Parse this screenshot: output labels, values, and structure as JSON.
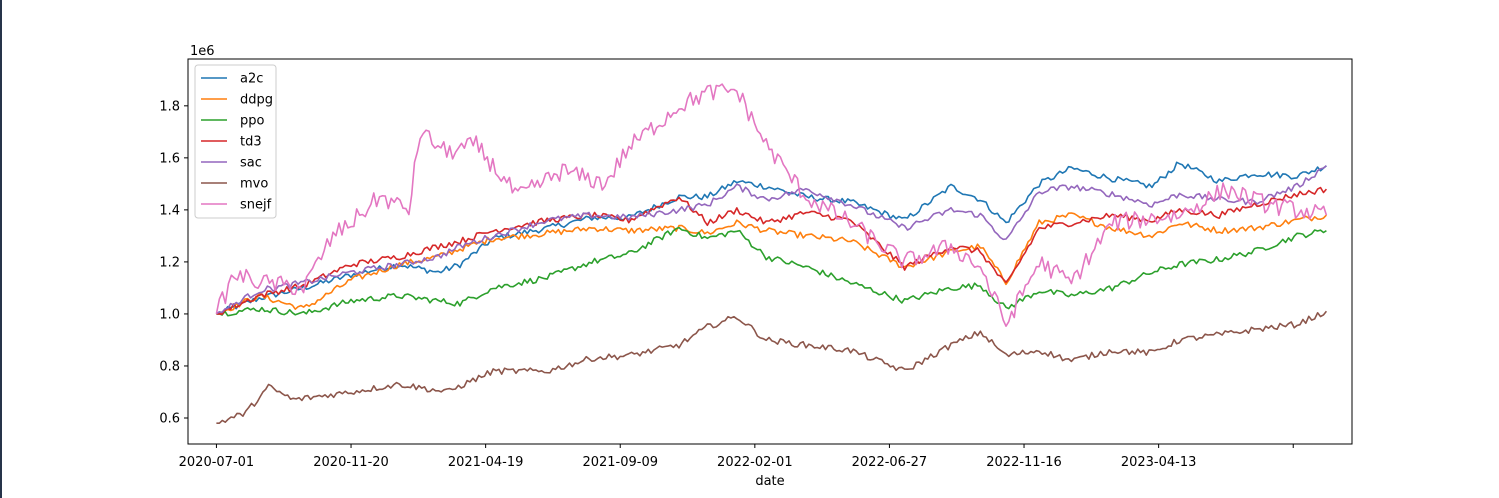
{
  "chart_data": {
    "type": "line",
    "title": "",
    "xlabel": "date",
    "ylabel": "",
    "y_offset_text": "1e6",
    "ylim": [
      0.5,
      1.98
    ],
    "y_ticks": [
      0.6,
      0.8,
      1.0,
      1.2,
      1.4,
      1.6,
      1.8
    ],
    "y_tick_labels": [
      "0.6",
      "0.8",
      "1.0",
      "1.2",
      "1.4",
      "1.6",
      "1.8"
    ],
    "x_ticks": [
      "2020-07-01",
      "2020-11-20",
      "2021-04-19",
      "2021-09-09",
      "2022-02-01",
      "2022-06-27",
      "2022-11-16",
      "2023-04-13",
      ""
    ],
    "x_range": [
      "2020-06-01",
      "2023-10-12"
    ],
    "legend_position": "upper-left",
    "grid": false,
    "series": [
      {
        "name": "a2c",
        "color": "#1f77b4",
        "values": [
          {
            "x": "2020-07-01",
            "y": 1.0
          },
          {
            "x": "2020-08-15",
            "y": 1.06
          },
          {
            "x": "2020-10-01",
            "y": 1.1
          },
          {
            "x": "2020-11-20",
            "y": 1.15
          },
          {
            "x": "2021-01-10",
            "y": 1.19
          },
          {
            "x": "2021-02-20",
            "y": 1.16
          },
          {
            "x": "2021-03-15",
            "y": 1.19
          },
          {
            "x": "2021-04-19",
            "y": 1.29
          },
          {
            "x": "2021-06-15",
            "y": 1.33
          },
          {
            "x": "2021-08-01",
            "y": 1.37
          },
          {
            "x": "2021-09-09",
            "y": 1.37
          },
          {
            "x": "2021-11-01",
            "y": 1.45
          },
          {
            "x": "2021-12-01",
            "y": 1.45
          },
          {
            "x": "2022-01-01",
            "y": 1.51
          },
          {
            "x": "2022-02-01",
            "y": 1.49
          },
          {
            "x": "2022-03-15",
            "y": 1.45
          },
          {
            "x": "2022-05-01",
            "y": 1.43
          },
          {
            "x": "2022-06-27",
            "y": 1.36
          },
          {
            "x": "2022-08-15",
            "y": 1.49
          },
          {
            "x": "2022-09-15",
            "y": 1.44
          },
          {
            "x": "2022-10-12",
            "y": 1.35
          },
          {
            "x": "2022-11-16",
            "y": 1.5
          },
          {
            "x": "2022-12-20",
            "y": 1.56
          },
          {
            "x": "2023-02-01",
            "y": 1.52
          },
          {
            "x": "2023-03-15",
            "y": 1.49
          },
          {
            "x": "2023-04-13",
            "y": 1.58
          },
          {
            "x": "2023-05-25",
            "y": 1.51
          },
          {
            "x": "2023-07-01",
            "y": 1.54
          },
          {
            "x": "2023-08-15",
            "y": 1.53
          },
          {
            "x": "2023-09-15",
            "y": 1.57
          }
        ]
      },
      {
        "name": "ddpg",
        "color": "#ff7f0e",
        "values": [
          {
            "x": "2020-07-01",
            "y": 1.0
          },
          {
            "x": "2020-08-15",
            "y": 1.07
          },
          {
            "x": "2020-10-01",
            "y": 1.02
          },
          {
            "x": "2020-11-20",
            "y": 1.13
          },
          {
            "x": "2021-01-10",
            "y": 1.19
          },
          {
            "x": "2021-02-20",
            "y": 1.22
          },
          {
            "x": "2021-03-15",
            "y": 1.25
          },
          {
            "x": "2021-04-19",
            "y": 1.29
          },
          {
            "x": "2021-06-15",
            "y": 1.31
          },
          {
            "x": "2021-08-01",
            "y": 1.33
          },
          {
            "x": "2021-09-09",
            "y": 1.32
          },
          {
            "x": "2021-11-01",
            "y": 1.33
          },
          {
            "x": "2021-12-01",
            "y": 1.31
          },
          {
            "x": "2022-01-01",
            "y": 1.35
          },
          {
            "x": "2022-02-01",
            "y": 1.32
          },
          {
            "x": "2022-03-15",
            "y": 1.3
          },
          {
            "x": "2022-05-01",
            "y": 1.28
          },
          {
            "x": "2022-06-27",
            "y": 1.18
          },
          {
            "x": "2022-08-15",
            "y": 1.24
          },
          {
            "x": "2022-09-15",
            "y": 1.26
          },
          {
            "x": "2022-10-12",
            "y": 1.12
          },
          {
            "x": "2022-11-16",
            "y": 1.35
          },
          {
            "x": "2022-12-20",
            "y": 1.38
          },
          {
            "x": "2023-02-01",
            "y": 1.33
          },
          {
            "x": "2023-03-15",
            "y": 1.3
          },
          {
            "x": "2023-04-13",
            "y": 1.35
          },
          {
            "x": "2023-05-25",
            "y": 1.32
          },
          {
            "x": "2023-07-01",
            "y": 1.33
          },
          {
            "x": "2023-08-15",
            "y": 1.36
          },
          {
            "x": "2023-09-15",
            "y": 1.38
          }
        ]
      },
      {
        "name": "ppo",
        "color": "#2ca02c",
        "values": [
          {
            "x": "2020-07-01",
            "y": 1.0
          },
          {
            "x": "2020-08-15",
            "y": 1.02
          },
          {
            "x": "2020-10-01",
            "y": 1.0
          },
          {
            "x": "2020-11-20",
            "y": 1.05
          },
          {
            "x": "2021-01-10",
            "y": 1.07
          },
          {
            "x": "2021-02-20",
            "y": 1.05
          },
          {
            "x": "2021-03-15",
            "y": 1.04
          },
          {
            "x": "2021-04-19",
            "y": 1.1
          },
          {
            "x": "2021-06-15",
            "y": 1.14
          },
          {
            "x": "2021-08-01",
            "y": 1.2
          },
          {
            "x": "2021-09-09",
            "y": 1.23
          },
          {
            "x": "2021-11-01",
            "y": 1.33
          },
          {
            "x": "2021-12-01",
            "y": 1.29
          },
          {
            "x": "2022-01-01",
            "y": 1.32
          },
          {
            "x": "2022-02-01",
            "y": 1.22
          },
          {
            "x": "2022-03-15",
            "y": 1.18
          },
          {
            "x": "2022-05-01",
            "y": 1.12
          },
          {
            "x": "2022-06-27",
            "y": 1.05
          },
          {
            "x": "2022-08-15",
            "y": 1.1
          },
          {
            "x": "2022-09-15",
            "y": 1.11
          },
          {
            "x": "2022-10-12",
            "y": 1.02
          },
          {
            "x": "2022-11-16",
            "y": 1.09
          },
          {
            "x": "2022-12-20",
            "y": 1.07
          },
          {
            "x": "2023-02-01",
            "y": 1.1
          },
          {
            "x": "2023-03-15",
            "y": 1.16
          },
          {
            "x": "2023-04-13",
            "y": 1.19
          },
          {
            "x": "2023-05-25",
            "y": 1.21
          },
          {
            "x": "2023-07-01",
            "y": 1.24
          },
          {
            "x": "2023-08-15",
            "y": 1.3
          },
          {
            "x": "2023-09-15",
            "y": 1.32
          }
        ]
      },
      {
        "name": "td3",
        "color": "#d62728",
        "values": [
          {
            "x": "2020-07-01",
            "y": 1.0
          },
          {
            "x": "2020-08-15",
            "y": 1.07
          },
          {
            "x": "2020-10-01",
            "y": 1.11
          },
          {
            "x": "2020-11-20",
            "y": 1.19
          },
          {
            "x": "2021-01-10",
            "y": 1.22
          },
          {
            "x": "2021-02-20",
            "y": 1.26
          },
          {
            "x": "2021-03-15",
            "y": 1.28
          },
          {
            "x": "2021-04-19",
            "y": 1.32
          },
          {
            "x": "2021-06-15",
            "y": 1.36
          },
          {
            "x": "2021-08-01",
            "y": 1.38
          },
          {
            "x": "2021-09-09",
            "y": 1.36
          },
          {
            "x": "2021-11-01",
            "y": 1.45
          },
          {
            "x": "2021-12-01",
            "y": 1.35
          },
          {
            "x": "2022-01-01",
            "y": 1.4
          },
          {
            "x": "2022-02-01",
            "y": 1.35
          },
          {
            "x": "2022-03-15",
            "y": 1.39
          },
          {
            "x": "2022-05-01",
            "y": 1.36
          },
          {
            "x": "2022-06-27",
            "y": 1.18
          },
          {
            "x": "2022-08-15",
            "y": 1.26
          },
          {
            "x": "2022-09-15",
            "y": 1.24
          },
          {
            "x": "2022-10-12",
            "y": 1.11
          },
          {
            "x": "2022-11-16",
            "y": 1.33
          },
          {
            "x": "2022-12-20",
            "y": 1.35
          },
          {
            "x": "2023-02-01",
            "y": 1.38
          },
          {
            "x": "2023-03-15",
            "y": 1.36
          },
          {
            "x": "2023-04-13",
            "y": 1.4
          },
          {
            "x": "2023-05-25",
            "y": 1.38
          },
          {
            "x": "2023-07-01",
            "y": 1.42
          },
          {
            "x": "2023-08-15",
            "y": 1.46
          },
          {
            "x": "2023-09-15",
            "y": 1.48
          }
        ]
      },
      {
        "name": "sac",
        "color": "#9467bd",
        "values": [
          {
            "x": "2020-07-01",
            "y": 1.0
          },
          {
            "x": "2020-08-15",
            "y": 1.09
          },
          {
            "x": "2020-10-01",
            "y": 1.12
          },
          {
            "x": "2020-11-20",
            "y": 1.16
          },
          {
            "x": "2021-01-10",
            "y": 1.19
          },
          {
            "x": "2021-02-20",
            "y": 1.22
          },
          {
            "x": "2021-03-15",
            "y": 1.26
          },
          {
            "x": "2021-04-19",
            "y": 1.3
          },
          {
            "x": "2021-06-15",
            "y": 1.36
          },
          {
            "x": "2021-08-01",
            "y": 1.38
          },
          {
            "x": "2021-09-09",
            "y": 1.37
          },
          {
            "x": "2021-11-01",
            "y": 1.4
          },
          {
            "x": "2021-12-01",
            "y": 1.42
          },
          {
            "x": "2022-01-01",
            "y": 1.49
          },
          {
            "x": "2022-02-01",
            "y": 1.44
          },
          {
            "x": "2022-03-15",
            "y": 1.48
          },
          {
            "x": "2022-05-01",
            "y": 1.42
          },
          {
            "x": "2022-06-27",
            "y": 1.33
          },
          {
            "x": "2022-08-15",
            "y": 1.4
          },
          {
            "x": "2022-09-15",
            "y": 1.38
          },
          {
            "x": "2022-10-12",
            "y": 1.28
          },
          {
            "x": "2022-11-16",
            "y": 1.47
          },
          {
            "x": "2022-12-20",
            "y": 1.49
          },
          {
            "x": "2023-02-01",
            "y": 1.46
          },
          {
            "x": "2023-03-15",
            "y": 1.42
          },
          {
            "x": "2023-04-13",
            "y": 1.46
          },
          {
            "x": "2023-05-25",
            "y": 1.44
          },
          {
            "x": "2023-07-01",
            "y": 1.43
          },
          {
            "x": "2023-08-15",
            "y": 1.49
          },
          {
            "x": "2023-09-15",
            "y": 1.57
          }
        ]
      },
      {
        "name": "mvo",
        "color": "#8c564b",
        "values": [
          {
            "x": "2020-07-01",
            "y": 0.58
          },
          {
            "x": "2020-08-01",
            "y": 0.62
          },
          {
            "x": "2020-08-25",
            "y": 0.72
          },
          {
            "x": "2020-09-20",
            "y": 0.67
          },
          {
            "x": "2020-11-20",
            "y": 0.7
          },
          {
            "x": "2021-01-10",
            "y": 0.73
          },
          {
            "x": "2021-03-01",
            "y": 0.7
          },
          {
            "x": "2021-04-19",
            "y": 0.78
          },
          {
            "x": "2021-06-15",
            "y": 0.78
          },
          {
            "x": "2021-08-01",
            "y": 0.83
          },
          {
            "x": "2021-09-09",
            "y": 0.84
          },
          {
            "x": "2021-11-01",
            "y": 0.88
          },
          {
            "x": "2021-12-01",
            "y": 0.95
          },
          {
            "x": "2022-01-01",
            "y": 0.99
          },
          {
            "x": "2022-02-01",
            "y": 0.9
          },
          {
            "x": "2022-03-15",
            "y": 0.88
          },
          {
            "x": "2022-05-01",
            "y": 0.86
          },
          {
            "x": "2022-06-27",
            "y": 0.78
          },
          {
            "x": "2022-08-15",
            "y": 0.88
          },
          {
            "x": "2022-09-15",
            "y": 0.93
          },
          {
            "x": "2022-10-12",
            "y": 0.84
          },
          {
            "x": "2022-11-16",
            "y": 0.86
          },
          {
            "x": "2022-12-20",
            "y": 0.82
          },
          {
            "x": "2023-02-01",
            "y": 0.86
          },
          {
            "x": "2023-03-15",
            "y": 0.85
          },
          {
            "x": "2023-04-13",
            "y": 0.9
          },
          {
            "x": "2023-05-25",
            "y": 0.92
          },
          {
            "x": "2023-07-01",
            "y": 0.94
          },
          {
            "x": "2023-08-15",
            "y": 0.96
          },
          {
            "x": "2023-09-15",
            "y": 1.01
          }
        ]
      },
      {
        "name": "snejf",
        "color": "#e377c2",
        "values": [
          {
            "x": "2020-07-01",
            "y": 1.0
          },
          {
            "x": "2020-07-20",
            "y": 1.15
          },
          {
            "x": "2020-08-20",
            "y": 1.12
          },
          {
            "x": "2020-10-01",
            "y": 1.1
          },
          {
            "x": "2020-11-01",
            "y": 1.3
          },
          {
            "x": "2020-11-20",
            "y": 1.35
          },
          {
            "x": "2020-12-20",
            "y": 1.45
          },
          {
            "x": "2021-01-20",
            "y": 1.4
          },
          {
            "x": "2021-02-01",
            "y": 1.7
          },
          {
            "x": "2021-03-01",
            "y": 1.62
          },
          {
            "x": "2021-04-01",
            "y": 1.65
          },
          {
            "x": "2021-05-15",
            "y": 1.45
          },
          {
            "x": "2021-07-01",
            "y": 1.55
          },
          {
            "x": "2021-08-15",
            "y": 1.5
          },
          {
            "x": "2021-09-09",
            "y": 1.64
          },
          {
            "x": "2021-11-01",
            "y": 1.8
          },
          {
            "x": "2021-12-01",
            "y": 1.85
          },
          {
            "x": "2022-01-01",
            "y": 1.86
          },
          {
            "x": "2022-02-01",
            "y": 1.65
          },
          {
            "x": "2022-03-15",
            "y": 1.45
          },
          {
            "x": "2022-05-01",
            "y": 1.35
          },
          {
            "x": "2022-06-27",
            "y": 1.2
          },
          {
            "x": "2022-08-15",
            "y": 1.26
          },
          {
            "x": "2022-09-15",
            "y": 1.18
          },
          {
            "x": "2022-10-12",
            "y": 0.96
          },
          {
            "x": "2022-11-16",
            "y": 1.2
          },
          {
            "x": "2022-12-20",
            "y": 1.12
          },
          {
            "x": "2023-02-01",
            "y": 1.35
          },
          {
            "x": "2023-04-13",
            "y": 1.38
          },
          {
            "x": "2023-06-01",
            "y": 1.48
          },
          {
            "x": "2023-07-15",
            "y": 1.42
          },
          {
            "x": "2023-09-15",
            "y": 1.38
          }
        ]
      }
    ]
  }
}
